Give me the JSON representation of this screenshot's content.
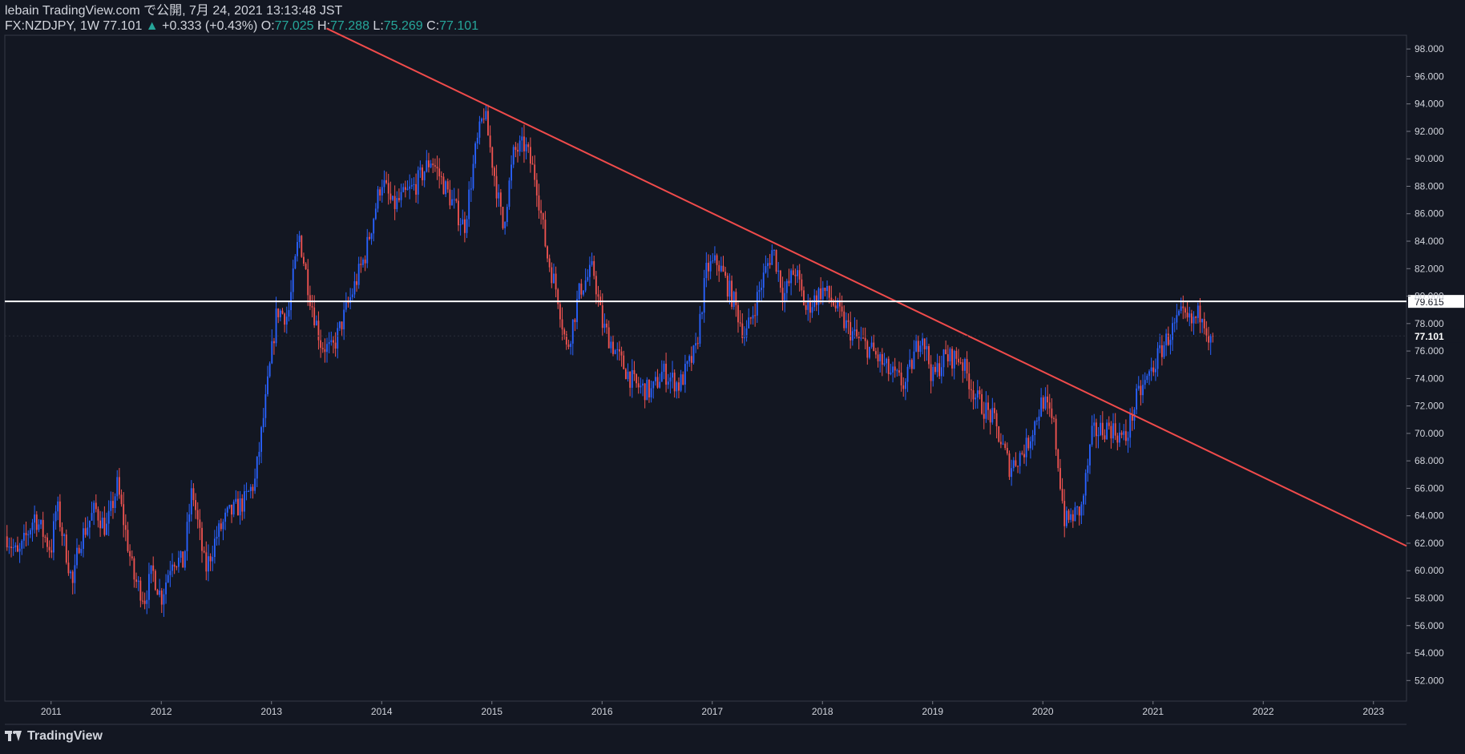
{
  "header": {
    "line1": "lebain TradingView.com で公開, 7月 24, 2021 13:13:48 JST",
    "symbol": "FX:NZDJPY, 1W",
    "last": "77.101",
    "arrow": "▲",
    "change": "+0.333 (+0.43%)",
    "o_label": "O:",
    "o_value": "77.025",
    "h_label": "H:",
    "h_value": "77.288",
    "l_label": "L:",
    "l_value": "75.269",
    "c_label": "C:",
    "c_value": "77.101"
  },
  "footer": {
    "brand": "TradingView"
  },
  "colors": {
    "background": "#131722",
    "up": "#2962ff",
    "down": "#ef5350",
    "trendline": "#f04b4b",
    "hline": "#ffffff",
    "text": "#d1d4dc",
    "accent": "#26a69a"
  },
  "chart_data": {
    "type": "candlestick",
    "interval": "1W",
    "symbol": "FX:NZDJPY",
    "xlim": [
      2010.58,
      2023.3
    ],
    "ylim": [
      50.5,
      99.0
    ],
    "x_ticks": [
      2011,
      2012,
      2013,
      2014,
      2015,
      2016,
      2017,
      2018,
      2019,
      2020,
      2021,
      2022,
      2023
    ],
    "y_ticks": [
      52.0,
      54.0,
      56.0,
      58.0,
      60.0,
      62.0,
      64.0,
      66.0,
      68.0,
      70.0,
      72.0,
      74.0,
      76.0,
      78.0,
      80.0,
      82.0,
      84.0,
      86.0,
      88.0,
      90.0,
      92.0,
      94.0,
      96.0,
      98.0
    ],
    "price_path": [
      [
        2010.6,
        62.5
      ],
      [
        2010.7,
        61.0
      ],
      [
        2010.85,
        64.0
      ],
      [
        2011.0,
        61.5
      ],
      [
        2011.05,
        64.8
      ],
      [
        2011.2,
        58.8
      ],
      [
        2011.25,
        62.0
      ],
      [
        2011.4,
        64.5
      ],
      [
        2011.5,
        63.0
      ],
      [
        2011.6,
        66.2
      ],
      [
        2011.75,
        59.5
      ],
      [
        2011.85,
        58.0
      ],
      [
        2011.92,
        60.0
      ],
      [
        2012.0,
        58.0
      ],
      [
        2012.1,
        61.0
      ],
      [
        2012.2,
        60.5
      ],
      [
        2012.28,
        66.0
      ],
      [
        2012.4,
        60.0
      ],
      [
        2012.5,
        62.5
      ],
      [
        2012.6,
        64.0
      ],
      [
        2012.75,
        65.0
      ],
      [
        2012.85,
        66.5
      ],
      [
        2012.95,
        72.5
      ],
      [
        2013.05,
        79.0
      ],
      [
        2013.15,
        78.5
      ],
      [
        2013.25,
        84.5
      ],
      [
        2013.35,
        80.0
      ],
      [
        2013.45,
        76.5
      ],
      [
        2013.55,
        76.0
      ],
      [
        2013.7,
        79.5
      ],
      [
        2013.85,
        83.0
      ],
      [
        2014.0,
        88.5
      ],
      [
        2014.1,
        86.5
      ],
      [
        2014.3,
        88.0
      ],
      [
        2014.45,
        90.0
      ],
      [
        2014.6,
        87.5
      ],
      [
        2014.75,
        85.0
      ],
      [
        2014.85,
        90.5
      ],
      [
        2014.93,
        93.5
      ],
      [
        2015.0,
        90.0
      ],
      [
        2015.1,
        85.0
      ],
      [
        2015.2,
        90.5
      ],
      [
        2015.3,
        91.0
      ],
      [
        2015.4,
        88.5
      ],
      [
        2015.5,
        83.0
      ],
      [
        2015.6,
        80.0
      ],
      [
        2015.68,
        76.0
      ],
      [
        2015.8,
        80.5
      ],
      [
        2015.92,
        82.0
      ],
      [
        2016.0,
        78.0
      ],
      [
        2016.15,
        75.5
      ],
      [
        2016.3,
        73.5
      ],
      [
        2016.45,
        73.0
      ],
      [
        2016.55,
        74.5
      ],
      [
        2016.7,
        73.5
      ],
      [
        2016.85,
        76.0
      ],
      [
        2016.95,
        82.0
      ],
      [
        2017.05,
        82.5
      ],
      [
        2017.2,
        79.5
      ],
      [
        2017.3,
        77.0
      ],
      [
        2017.45,
        81.0
      ],
      [
        2017.55,
        83.5
      ],
      [
        2017.65,
        80.0
      ],
      [
        2017.75,
        82.0
      ],
      [
        2017.85,
        79.0
      ],
      [
        2018.0,
        80.5
      ],
      [
        2018.1,
        79.5
      ],
      [
        2018.2,
        78.0
      ],
      [
        2018.3,
        77.0
      ],
      [
        2018.45,
        76.0
      ],
      [
        2018.6,
        74.5
      ],
      [
        2018.75,
        73.5
      ],
      [
        2018.9,
        77.5
      ],
      [
        2019.0,
        74.0
      ],
      [
        2019.1,
        75.5
      ],
      [
        2019.25,
        75.5
      ],
      [
        2019.4,
        72.5
      ],
      [
        2019.55,
        71.0
      ],
      [
        2019.7,
        67.5
      ],
      [
        2019.85,
        69.0
      ],
      [
        2020.0,
        72.5
      ],
      [
        2020.1,
        70.5
      ],
      [
        2020.2,
        63.5
      ],
      [
        2020.35,
        64.5
      ],
      [
        2020.45,
        70.0
      ],
      [
        2020.6,
        70.5
      ],
      [
        2020.75,
        69.5
      ],
      [
        2020.85,
        72.5
      ],
      [
        2020.95,
        74.0
      ],
      [
        2021.1,
        76.5
      ],
      [
        2021.25,
        78.5
      ],
      [
        2021.35,
        78.0
      ],
      [
        2021.45,
        79.0
      ],
      [
        2021.52,
        76.5
      ],
      [
        2021.56,
        77.1
      ]
    ],
    "trendline": {
      "x": [
        2013.5,
        2023.3
      ],
      "y": [
        99.5,
        61.8
      ]
    },
    "horizontal_line": 79.615,
    "price_labels": [
      "79.615",
      "77.101"
    ],
    "last_price": 77.101
  }
}
